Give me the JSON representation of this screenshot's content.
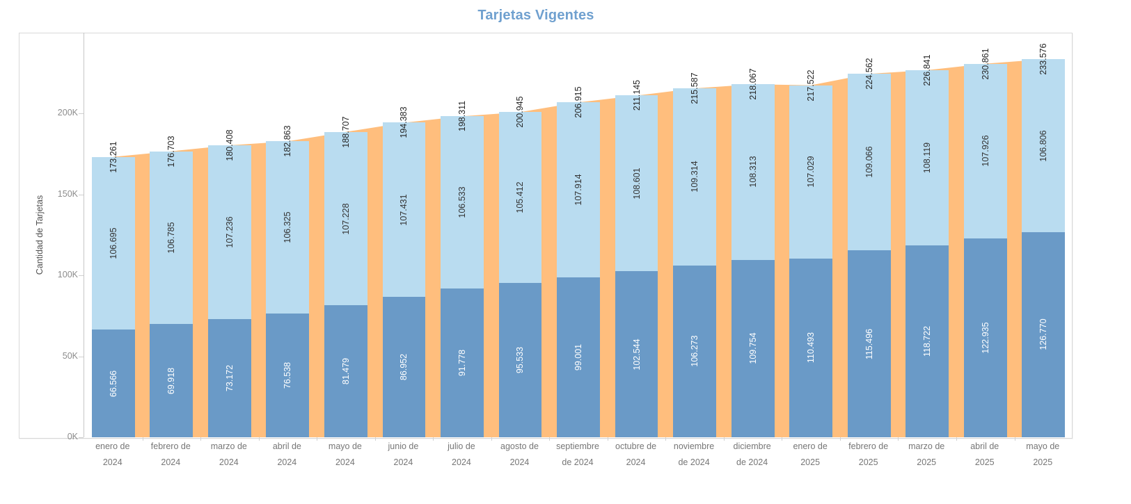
{
  "title": "Tarjetas Vigentes",
  "colors": {
    "title": "#6FA0CF",
    "area": "#FFBE7D",
    "bar_bottom": "#6A9AC7",
    "bar_top": "#B9DCF0",
    "total_label": "#262626",
    "top_segment_label": "#333333",
    "bottom_segment_label": "#FFFFFF",
    "axis_text": "#8C8C8C",
    "x_axis_text": "#767676",
    "border": "#D8D8D8"
  },
  "chart_data": {
    "type": "bar",
    "subtype": "stacked-bars-with-total-area-behind",
    "title": "Tarjetas Vigentes",
    "xlabel": "",
    "ylabel": "Cantidad de Tarjetas",
    "ylim": [
      0,
      250000
    ],
    "grid": false,
    "legend": "none",
    "number_format": "thousands-dot-separator",
    "yticks": [
      {
        "value": 0,
        "label": "0K"
      },
      {
        "value": 50000,
        "label": "50K"
      },
      {
        "value": 100000,
        "label": "100K"
      },
      {
        "value": 150000,
        "label": "150K"
      },
      {
        "value": 200000,
        "label": "200K"
      }
    ],
    "categories": [
      "enero de 2024",
      "febrero de 2024",
      "marzo de 2024",
      "abril de 2024",
      "mayo de 2024",
      "junio de 2024",
      "julio de 2024",
      "agosto de 2024",
      "septiembre de 2024",
      "octubre de 2024",
      "noviembre de 2024",
      "diciembre de 2024",
      "enero de 2025",
      "febrero de 2025",
      "marzo de 2025",
      "abril de 2025",
      "mayo de 2025"
    ],
    "category_label_lines": [
      [
        "enero de",
        "2024"
      ],
      [
        "febrero de",
        "2024"
      ],
      [
        "marzo de",
        "2024"
      ],
      [
        "abril de",
        "2024"
      ],
      [
        "mayo de",
        "2024"
      ],
      [
        "junio de",
        "2024"
      ],
      [
        "julio de",
        "2024"
      ],
      [
        "agosto de",
        "2024"
      ],
      [
        "septiembre",
        "de 2024"
      ],
      [
        "octubre de",
        "2024"
      ],
      [
        "noviembre",
        "de 2024"
      ],
      [
        "diciembre",
        "de 2024"
      ],
      [
        "enero de",
        "2025"
      ],
      [
        "febrero de",
        "2025"
      ],
      [
        "marzo de",
        "2025"
      ],
      [
        "abril de",
        "2025"
      ],
      [
        "mayo de",
        "2025"
      ]
    ],
    "series": [
      {
        "name": "segment-bottom",
        "color": "#6A9AC7",
        "values": [
          66566,
          69918,
          73172,
          76538,
          81479,
          86952,
          91778,
          95533,
          99001,
          102544,
          106273,
          109754,
          110493,
          115496,
          118722,
          122935,
          126770
        ]
      },
      {
        "name": "segment-top",
        "color": "#B9DCF0",
        "values": [
          106695,
          106785,
          107236,
          106325,
          107228,
          107431,
          106533,
          105412,
          107914,
          108601,
          109314,
          108313,
          107029,
          109066,
          108119,
          107926,
          106806
        ]
      },
      {
        "name": "total-area",
        "color": "#FFBE7D",
        "values": [
          173261,
          176703,
          180408,
          182863,
          188707,
          194383,
          198311,
          200945,
          206915,
          211145,
          215587,
          218067,
          217522,
          224562,
          226841,
          230861,
          233576
        ]
      }
    ]
  }
}
